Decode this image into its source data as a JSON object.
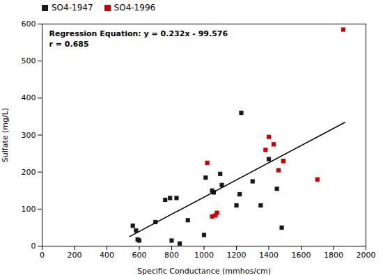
{
  "chart_data": {
    "type": "scatter",
    "xlabel": "Specific Conductance (mmhos/cm)",
    "ylabel": "Sulfate (mg/L)",
    "annotations": [
      "Regression Equation: y = 0.232x - 99.576",
      "r = 0.685"
    ],
    "xlim": [
      0,
      2000
    ],
    "ylim": [
      0,
      600
    ],
    "xticks": [
      0,
      200,
      400,
      600,
      800,
      1000,
      1200,
      1400,
      1600,
      1800,
      2000
    ],
    "yticks": [
      0,
      100,
      200,
      300,
      400,
      500,
      600
    ],
    "grid": false,
    "legend": "upper left",
    "series": [
      {
        "name": "SO4-1947",
        "type": "scatter",
        "marker": "square",
        "color": "#1a1a1a",
        "x": [
          560,
          580,
          590,
          600,
          700,
          760,
          790,
          800,
          830,
          850,
          900,
          1000,
          1010,
          1050,
          1060,
          1100,
          1110,
          1200,
          1220,
          1230,
          1300,
          1350,
          1400,
          1450,
          1480,
          1490
        ],
        "values": [
          55,
          42,
          18,
          15,
          65,
          125,
          130,
          15,
          130,
          7,
          70,
          30,
          185,
          150,
          145,
          195,
          165,
          110,
          140,
          360,
          175,
          110,
          235,
          155,
          50,
          230
        ]
      },
      {
        "name": "SO4-1996",
        "type": "scatter",
        "marker": "square",
        "color": "#cc0000",
        "x": [
          1020,
          1050,
          1070,
          1080,
          1380,
          1400,
          1430,
          1460,
          1490,
          1700,
          1860
        ],
        "values": [
          225,
          80,
          83,
          90,
          260,
          295,
          275,
          205,
          230,
          180,
          585
        ]
      },
      {
        "type": "line",
        "line_style": "solid",
        "color": "black",
        "x": [
          540,
          1870
        ],
        "values": [
          25.704,
          334.264
        ]
      }
    ]
  }
}
